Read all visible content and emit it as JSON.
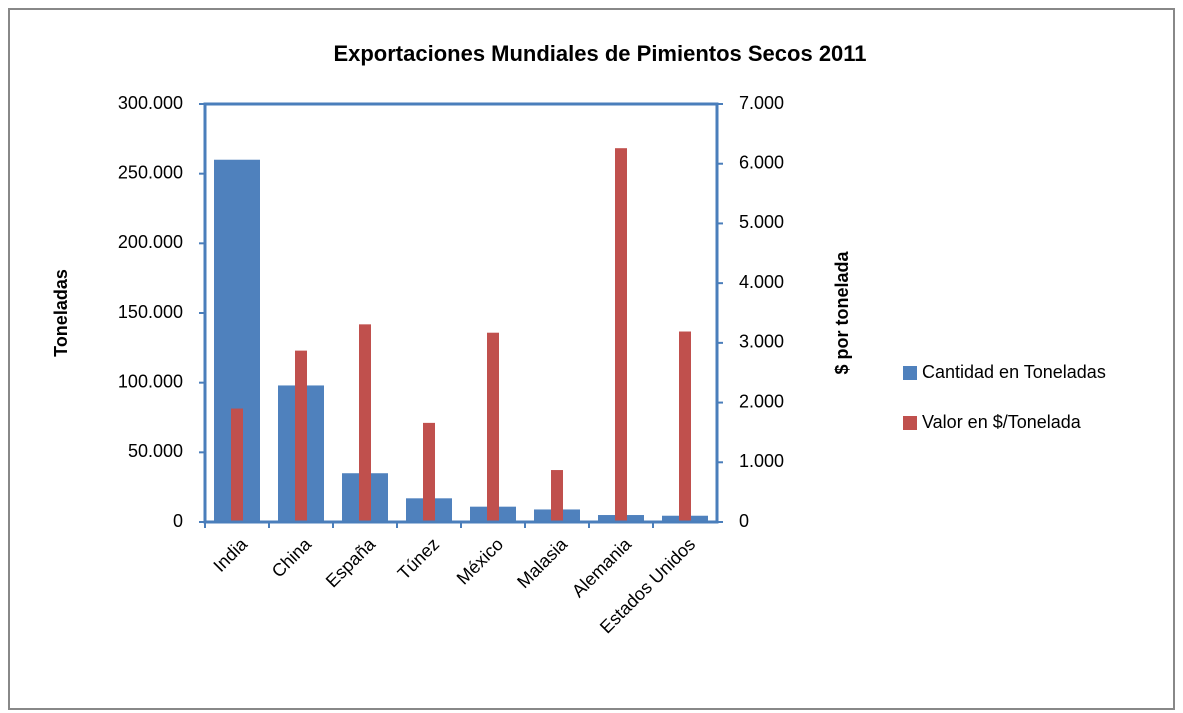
{
  "chart_data": {
    "type": "bar",
    "title": "Exportaciones Mundiales  de Pimientos Secos  2011",
    "y_label": "Toneladas",
    "y2_label": "$ por tonelada",
    "categories": [
      "India",
      "China",
      "España",
      "Túnez",
      "México",
      "Malasia",
      "Alemania",
      "Estados Unidos"
    ],
    "series": [
      {
        "name": "Cantidad en Toneladas",
        "color": "#4f81bd",
        "values": [
          260000,
          98000,
          35000,
          17000,
          11000,
          9000,
          5000,
          4500
        ]
      },
      {
        "name": "Valor en $/Tonelada",
        "color": "#c0504d",
        "axis": "y2",
        "values": [
          1900,
          2870,
          3310,
          1660,
          3170,
          870,
          6260,
          3190
        ]
      }
    ],
    "ylim": [
      0,
      300000
    ],
    "yticks": [
      0,
      {
        "value": 50000,
        "label": "50.000"
      },
      {
        "value": 100000,
        "label": "100.000"
      },
      {
        "value": 150000,
        "label": "150.000"
      },
      {
        "value": 200000,
        "label": "200.000"
      },
      {
        "value": 250000,
        "label": "250.000"
      },
      {
        "value": 300000,
        "label": "300.000"
      }
    ],
    "y2lim": [
      0,
      7000
    ],
    "y2ticks": [
      0,
      {
        "value": 1000,
        "label": "1.000"
      },
      {
        "value": 2000,
        "label": "2.000"
      },
      {
        "value": 3000,
        "label": "3.000"
      },
      {
        "value": 4000,
        "label": "4.000"
      },
      {
        "value": 5000,
        "label": "5.000"
      },
      {
        "value": 6000,
        "label": "6.000"
      },
      {
        "value": 7000,
        "label": "7.000"
      }
    ],
    "legend": "right",
    "grid": false
  }
}
